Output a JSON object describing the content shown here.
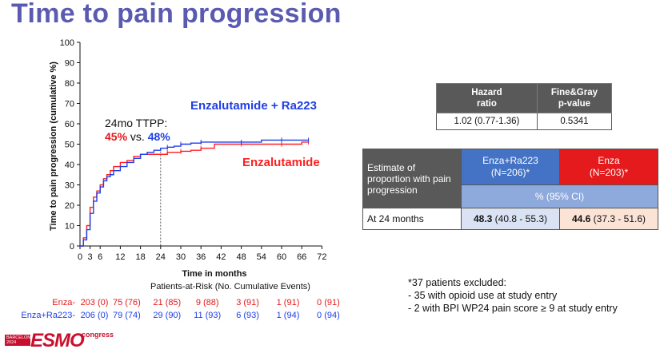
{
  "title": "Time to pain progression",
  "chart_data": {
    "type": "line",
    "ylabel": "Time to pain progression (cumulative %)",
    "xlabel": "Time in months",
    "xlim": [
      0,
      72
    ],
    "ylim": [
      0,
      100
    ],
    "x_ticks": [
      0,
      3,
      6,
      12,
      18,
      24,
      30,
      36,
      42,
      48,
      54,
      60,
      66,
      72
    ],
    "y_ticks": [
      0,
      10,
      20,
      30,
      40,
      50,
      60,
      70,
      80,
      90,
      100
    ],
    "series": [
      {
        "name": "Enzalutamide + Ra223",
        "color": "#1f3fe8",
        "x": [
          0,
          1,
          2,
          3,
          4,
          5,
          6,
          7,
          8,
          9,
          10,
          12,
          14,
          16,
          18,
          20,
          22,
          24,
          26,
          28,
          30,
          33,
          36,
          40,
          48,
          54,
          60,
          66,
          68
        ],
        "y": [
          0,
          3,
          8,
          16,
          22,
          26,
          29,
          32,
          34,
          35,
          37,
          39,
          41,
          43,
          45,
          46,
          47,
          48,
          48.5,
          49,
          50,
          50.5,
          51,
          51,
          51,
          52,
          52,
          52,
          52
        ]
      },
      {
        "name": "Enzalutamide",
        "color": "#ff2020",
        "x": [
          0,
          1,
          2,
          3,
          4,
          5,
          6,
          7,
          8,
          9,
          10,
          12,
          14,
          16,
          18,
          20,
          22,
          24,
          26,
          28,
          30,
          33,
          36,
          40,
          48,
          54,
          60,
          66,
          68
        ],
        "y": [
          0,
          4,
          10,
          19,
          24,
          27,
          30,
          33,
          35,
          37,
          39,
          41,
          42,
          44,
          45,
          45,
          45,
          45,
          46,
          46,
          46.5,
          47,
          48,
          50,
          50,
          50,
          50,
          51,
          51
        ]
      }
    ],
    "annotations": {
      "ttpp_label": "24mo TTPP:",
      "ttpp_enza": "45%",
      "ttpp_vs": " vs. ",
      "ttpp_ra": "48%",
      "ttpp_x": 24
    },
    "risk_table": {
      "title": "Patients-at-Risk (No. Cumulative Events)",
      "x": [
        0,
        12,
        24,
        36,
        48,
        60,
        72
      ],
      "rows": [
        {
          "label": "Enza-",
          "color": "#e41a1c",
          "values": [
            "203 (0)",
            "75 (76)",
            "21 (85)",
            "9 (88)",
            "3 (91)",
            "1 (91)",
            "0 (91)"
          ]
        },
        {
          "label": "Enza+Ra223-",
          "color": "#1f3fe8",
          "values": [
            "206 (0)",
            "79 (74)",
            "29 (90)",
            "11 (93)",
            "6 (93)",
            "1 (94)",
            "0 (94)"
          ]
        }
      ]
    }
  },
  "hazard_table": {
    "col1_line1": "Hazard",
    "col1_line2": "ratio",
    "col2_line1": "Fine&Gray",
    "col2_line2": "p-value",
    "hr": "1.02 (0.77-1.36)",
    "p": "0.5341"
  },
  "estimate_table": {
    "label_line1": "Estimate of",
    "label_line2": "proportion with pain",
    "label_line3": "progression",
    "arm1_line1": "Enza+Ra223",
    "arm1_line2": "(N=206)*",
    "arm2_line1": "Enza",
    "arm2_line2": "(N=203)*",
    "ci_header": "% (95% CI)",
    "row_label": "At 24 months",
    "arm1_value": "48.3",
    "arm1_ci": " (40.8 - 55.3)",
    "arm2_value": "44.6",
    "arm2_ci": " (37.3 - 51.6)"
  },
  "notes": [
    "*37 patients excluded:",
    "- 35 with opioid use at study entry",
    "- 2 with BPI WP24 pain score ≥ 9 at study entry"
  ],
  "logo": {
    "city": "BARCELONA",
    "year": "2024",
    "brand": "ESMO",
    "suffix": "congress"
  },
  "colors": {
    "title": "#5a5bb0",
    "ra223": "#1f3fe8",
    "enza": "#e41a1c"
  }
}
